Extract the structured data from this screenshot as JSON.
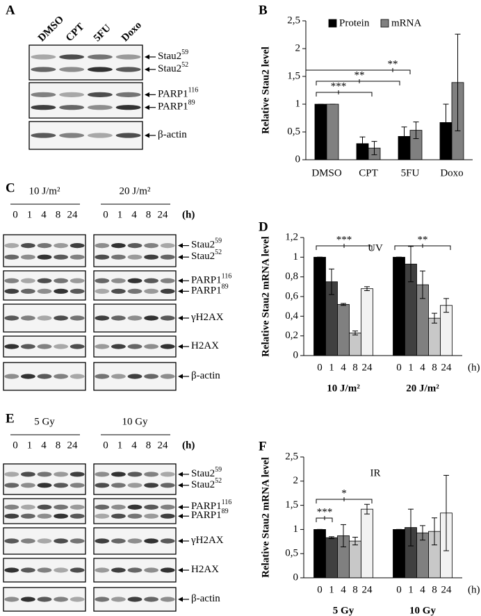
{
  "panels": {
    "A": {
      "label": "A",
      "lanes": [
        "DMSO",
        "CPT",
        "5FU",
        "Doxo"
      ],
      "blots": [
        {
          "bands": [
            {
              "name": "Stau2",
              "sup": "59"
            },
            {
              "name": "Stau2",
              "sup": "52"
            }
          ]
        },
        {
          "bands": [
            {
              "name": "PARP1",
              "sup": "116"
            },
            {
              "name": "PARP1",
              "sup": "89"
            }
          ]
        },
        {
          "bands": [
            {
              "name": "β-actin"
            }
          ]
        }
      ]
    },
    "C": {
      "label": "C",
      "conditions": [
        "10 J/m²",
        "20 J/m²"
      ],
      "hours": [
        "0",
        "1",
        "4",
        "8",
        "24"
      ],
      "hours_unit": "(h)",
      "blots": [
        {
          "bands": [
            {
              "name": "Stau2",
              "sup": "59"
            },
            {
              "name": "Stau2",
              "sup": "52"
            }
          ]
        },
        {
          "bands": [
            {
              "name": "PARP1",
              "sup": "116"
            },
            {
              "name": "PARP1",
              "sup": "89"
            }
          ]
        },
        {
          "bands": [
            {
              "name": "γH2AX"
            }
          ]
        },
        {
          "bands": [
            {
              "name": "H2AX"
            }
          ]
        },
        {
          "bands": [
            {
              "name": "β-actin"
            }
          ]
        }
      ]
    },
    "E": {
      "label": "E",
      "conditions": [
        "5 Gy",
        "10 Gy"
      ],
      "hours": [
        "0",
        "1",
        "4",
        "8",
        "24"
      ],
      "hours_unit": "(h)",
      "blots": [
        {
          "bands": [
            {
              "name": "Stau2",
              "sup": "59"
            },
            {
              "name": "Stau2",
              "sup": "52"
            }
          ]
        },
        {
          "bands": [
            {
              "name": "PARP1",
              "sup": "116"
            },
            {
              "name": "PARP1",
              "sup": "89"
            }
          ]
        },
        {
          "bands": [
            {
              "name": "γH2AX"
            }
          ]
        },
        {
          "bands": [
            {
              "name": "H2AX"
            }
          ]
        },
        {
          "bands": [
            {
              "name": "β-actin"
            }
          ]
        }
      ]
    }
  },
  "chart_data": [
    {
      "panel_label": "B",
      "type": "bar",
      "ylabel": "Relative Stau2 level",
      "categories": [
        "DMSO",
        "CPT",
        "5FU",
        "Doxo"
      ],
      "series": [
        {
          "name": "Protein",
          "color": "#000000",
          "values": [
            1,
            0.29,
            0.42,
            0.67
          ],
          "errors": [
            0,
            0.12,
            0.17,
            0.33
          ]
        },
        {
          "name": "mRNA",
          "color": "#808080",
          "values": [
            1,
            0.21,
            0.53,
            1.39
          ],
          "errors": [
            0,
            0.12,
            0.15,
            0.87
          ]
        }
      ],
      "ylim": [
        0,
        2.5
      ],
      "yticks": [
        0,
        {
          "value": 0.5,
          "label": "0,5"
        },
        1,
        {
          "value": 1.5,
          "label": "1,5"
        },
        2,
        {
          "value": 2.5,
          "label": "2,5"
        }
      ],
      "legend": "top",
      "annotations": [
        {
          "text": "**"
        },
        {
          "text": "**"
        },
        {
          "text": "***"
        }
      ]
    },
    {
      "panel_label": "D",
      "type": "bar",
      "title": "UV",
      "ylabel": "Relative Stau2 mRNA level",
      "categories": [
        "10 J/m²",
        "20 J/m²"
      ],
      "x_unit": "(h)",
      "series": [
        {
          "name": "0",
          "color": "#000000",
          "values": [
            1,
            1
          ],
          "errors": [
            0,
            0
          ]
        },
        {
          "name": "1",
          "color": "#404040",
          "values": [
            0.75,
            0.93
          ],
          "errors": [
            0.13,
            0.18
          ]
        },
        {
          "name": "4",
          "color": "#808080",
          "values": [
            0.52,
            0.72
          ],
          "errors": [
            0.01,
            0.14
          ]
        },
        {
          "name": "8",
          "color": "#c8c8c8",
          "values": [
            0.23,
            0.38
          ],
          "errors": [
            0.02,
            0.05
          ]
        },
        {
          "name": "24",
          "color": "#f2f2f2",
          "values": [
            0.68,
            0.51
          ],
          "errors": [
            0.02,
            0.07
          ]
        }
      ],
      "ylim": [
        0,
        1.2
      ],
      "yticks": [
        0,
        {
          "value": 0.2,
          "label": "0,2"
        },
        {
          "value": 0.4,
          "label": "0,4"
        },
        {
          "value": 0.6,
          "label": "0,6"
        },
        {
          "value": 0.8,
          "label": "0,8"
        },
        1,
        {
          "value": 1.2,
          "label": "1,2"
        }
      ],
      "annotations": [
        {
          "text": "***"
        },
        {
          "text": "**"
        }
      ]
    },
    {
      "panel_label": "F",
      "type": "bar",
      "title": "IR",
      "ylabel": "Relative Stau2 mRNA level",
      "categories": [
        "5 Gy",
        "10 Gy"
      ],
      "x_unit": "(h)",
      "series": [
        {
          "name": "0",
          "color": "#000000",
          "values": [
            1,
            1
          ],
          "errors": [
            0,
            0
          ]
        },
        {
          "name": "1",
          "color": "#404040",
          "values": [
            0.83,
            1.04
          ],
          "errors": [
            0.02,
            0.38
          ]
        },
        {
          "name": "4",
          "color": "#808080",
          "values": [
            0.87,
            0.93
          ],
          "errors": [
            0.23,
            0.15
          ]
        },
        {
          "name": "8",
          "color": "#c8c8c8",
          "values": [
            0.76,
            0.96
          ],
          "errors": [
            0.08,
            0.28
          ]
        },
        {
          "name": "24",
          "color": "#f2f2f2",
          "values": [
            1.42,
            1.34
          ],
          "errors": [
            0.1,
            0.78
          ]
        }
      ],
      "ylim": [
        0,
        2.5
      ],
      "yticks": [
        0,
        {
          "value": 0.5,
          "label": "0,5"
        },
        1,
        {
          "value": 1.5,
          "label": "1,5"
        },
        2,
        {
          "value": 2.5,
          "label": "2,5"
        }
      ],
      "annotations": [
        {
          "text": "***"
        },
        {
          "text": "*"
        }
      ]
    }
  ]
}
